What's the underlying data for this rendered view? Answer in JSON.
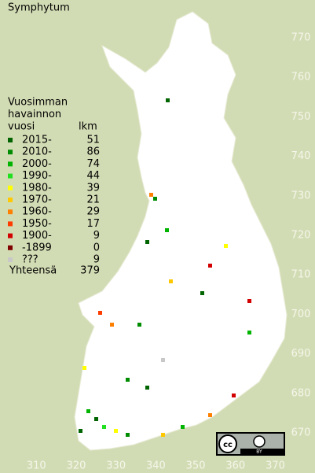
{
  "title": "Symphytum",
  "legend": {
    "heading": [
      "Vuosimman",
      "havainnon",
      "vuosi"
    ],
    "count_heading": "lkm",
    "rows": [
      {
        "label": "2015-",
        "count": 51,
        "color": "#006400"
      },
      {
        "label": "2010-",
        "count": 86,
        "color": "#008c00"
      },
      {
        "label": "2000-",
        "count": 74,
        "color": "#00b400"
      },
      {
        "label": "1990-",
        "count": 44,
        "color": "#20e020"
      },
      {
        "label": "1980-",
        "count": 39,
        "color": "#ffff00"
      },
      {
        "label": "1970-",
        "count": 21,
        "color": "#ffc800"
      },
      {
        "label": "1960-",
        "count": 29,
        "color": "#ff8000"
      },
      {
        "label": "1950-",
        "count": 17,
        "color": "#ff3c00"
      },
      {
        "label": "1900-",
        "count": 9,
        "color": "#d20000"
      },
      {
        "label": "-1899",
        "count": 0,
        "color": "#800000"
      },
      {
        "label": "???",
        "count": 9,
        "color": "#c8c8c8"
      }
    ],
    "total_label": "Yhteensä",
    "total": 379
  },
  "x_ticks": [
    310,
    320,
    330,
    340,
    350,
    360,
    370
  ],
  "y_ticks": [
    670,
    680,
    690,
    700,
    710,
    720,
    730,
    740,
    750,
    760,
    770
  ],
  "license": {
    "badge": "cc",
    "type": "BY"
  }
}
